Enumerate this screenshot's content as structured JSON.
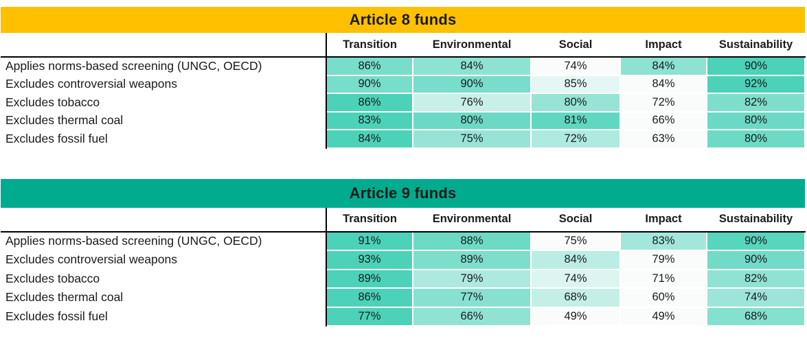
{
  "page": {
    "background": "#ffffff",
    "text_color": "#1a1a1a"
  },
  "heatmap_style": {
    "scale_mode": "per-row",
    "min_color": "#FAFCFC",
    "max_color": "#4CD2B9",
    "value_suffix": "%"
  },
  "chart_data": [
    {
      "type": "heatmap",
      "title": "Article 8 funds",
      "title_bg": "#FFC000",
      "title_color": "#1a1a1a",
      "columns": [
        "Transition",
        "Environmental",
        "Social",
        "Impact",
        "Sustainability"
      ],
      "row_labels": [
        "Applies norms-based screening (UNGC, OECD)",
        "Excludes controversial weapons",
        "Excludes tobacco",
        "Excludes thermal coal",
        "Excludes fossil fuel"
      ],
      "values": [
        [
          86,
          84,
          74,
          84,
          90
        ],
        [
          90,
          90,
          85,
          84,
          92
        ],
        [
          86,
          76,
          80,
          72,
          82
        ],
        [
          83,
          80,
          81,
          66,
          80
        ],
        [
          84,
          75,
          72,
          63,
          80
        ]
      ],
      "value_format": "percent",
      "color_scale": {
        "mode": "per-row",
        "min_color": "#FAFCFC",
        "max_color": "#4CD2B9"
      },
      "legend": "none",
      "grid": "white 2px gaps between cells"
    },
    {
      "type": "heatmap",
      "title": "Article 9 funds",
      "title_bg": "#00AB8E",
      "title_color": "#1a1a1a",
      "columns": [
        "Transition",
        "Environmental",
        "Social",
        "Impact",
        "Sustainability"
      ],
      "row_labels": [
        "Applies norms-based screening (UNGC, OECD)",
        "Excludes controversial weapons",
        "Excludes tobacco",
        "Excludes thermal coal",
        "Excludes fossil fuel"
      ],
      "values": [
        [
          91,
          88,
          75,
          83,
          90
        ],
        [
          93,
          89,
          84,
          79,
          90
        ],
        [
          89,
          79,
          74,
          71,
          82
        ],
        [
          86,
          77,
          68,
          60,
          74
        ],
        [
          77,
          66,
          49,
          49,
          68
        ]
      ],
      "value_format": "percent",
      "color_scale": {
        "mode": "per-row",
        "min_color": "#FAFCFC",
        "max_color": "#4CD2B9"
      },
      "legend": "none",
      "grid": "white 2px gaps between cells"
    }
  ]
}
